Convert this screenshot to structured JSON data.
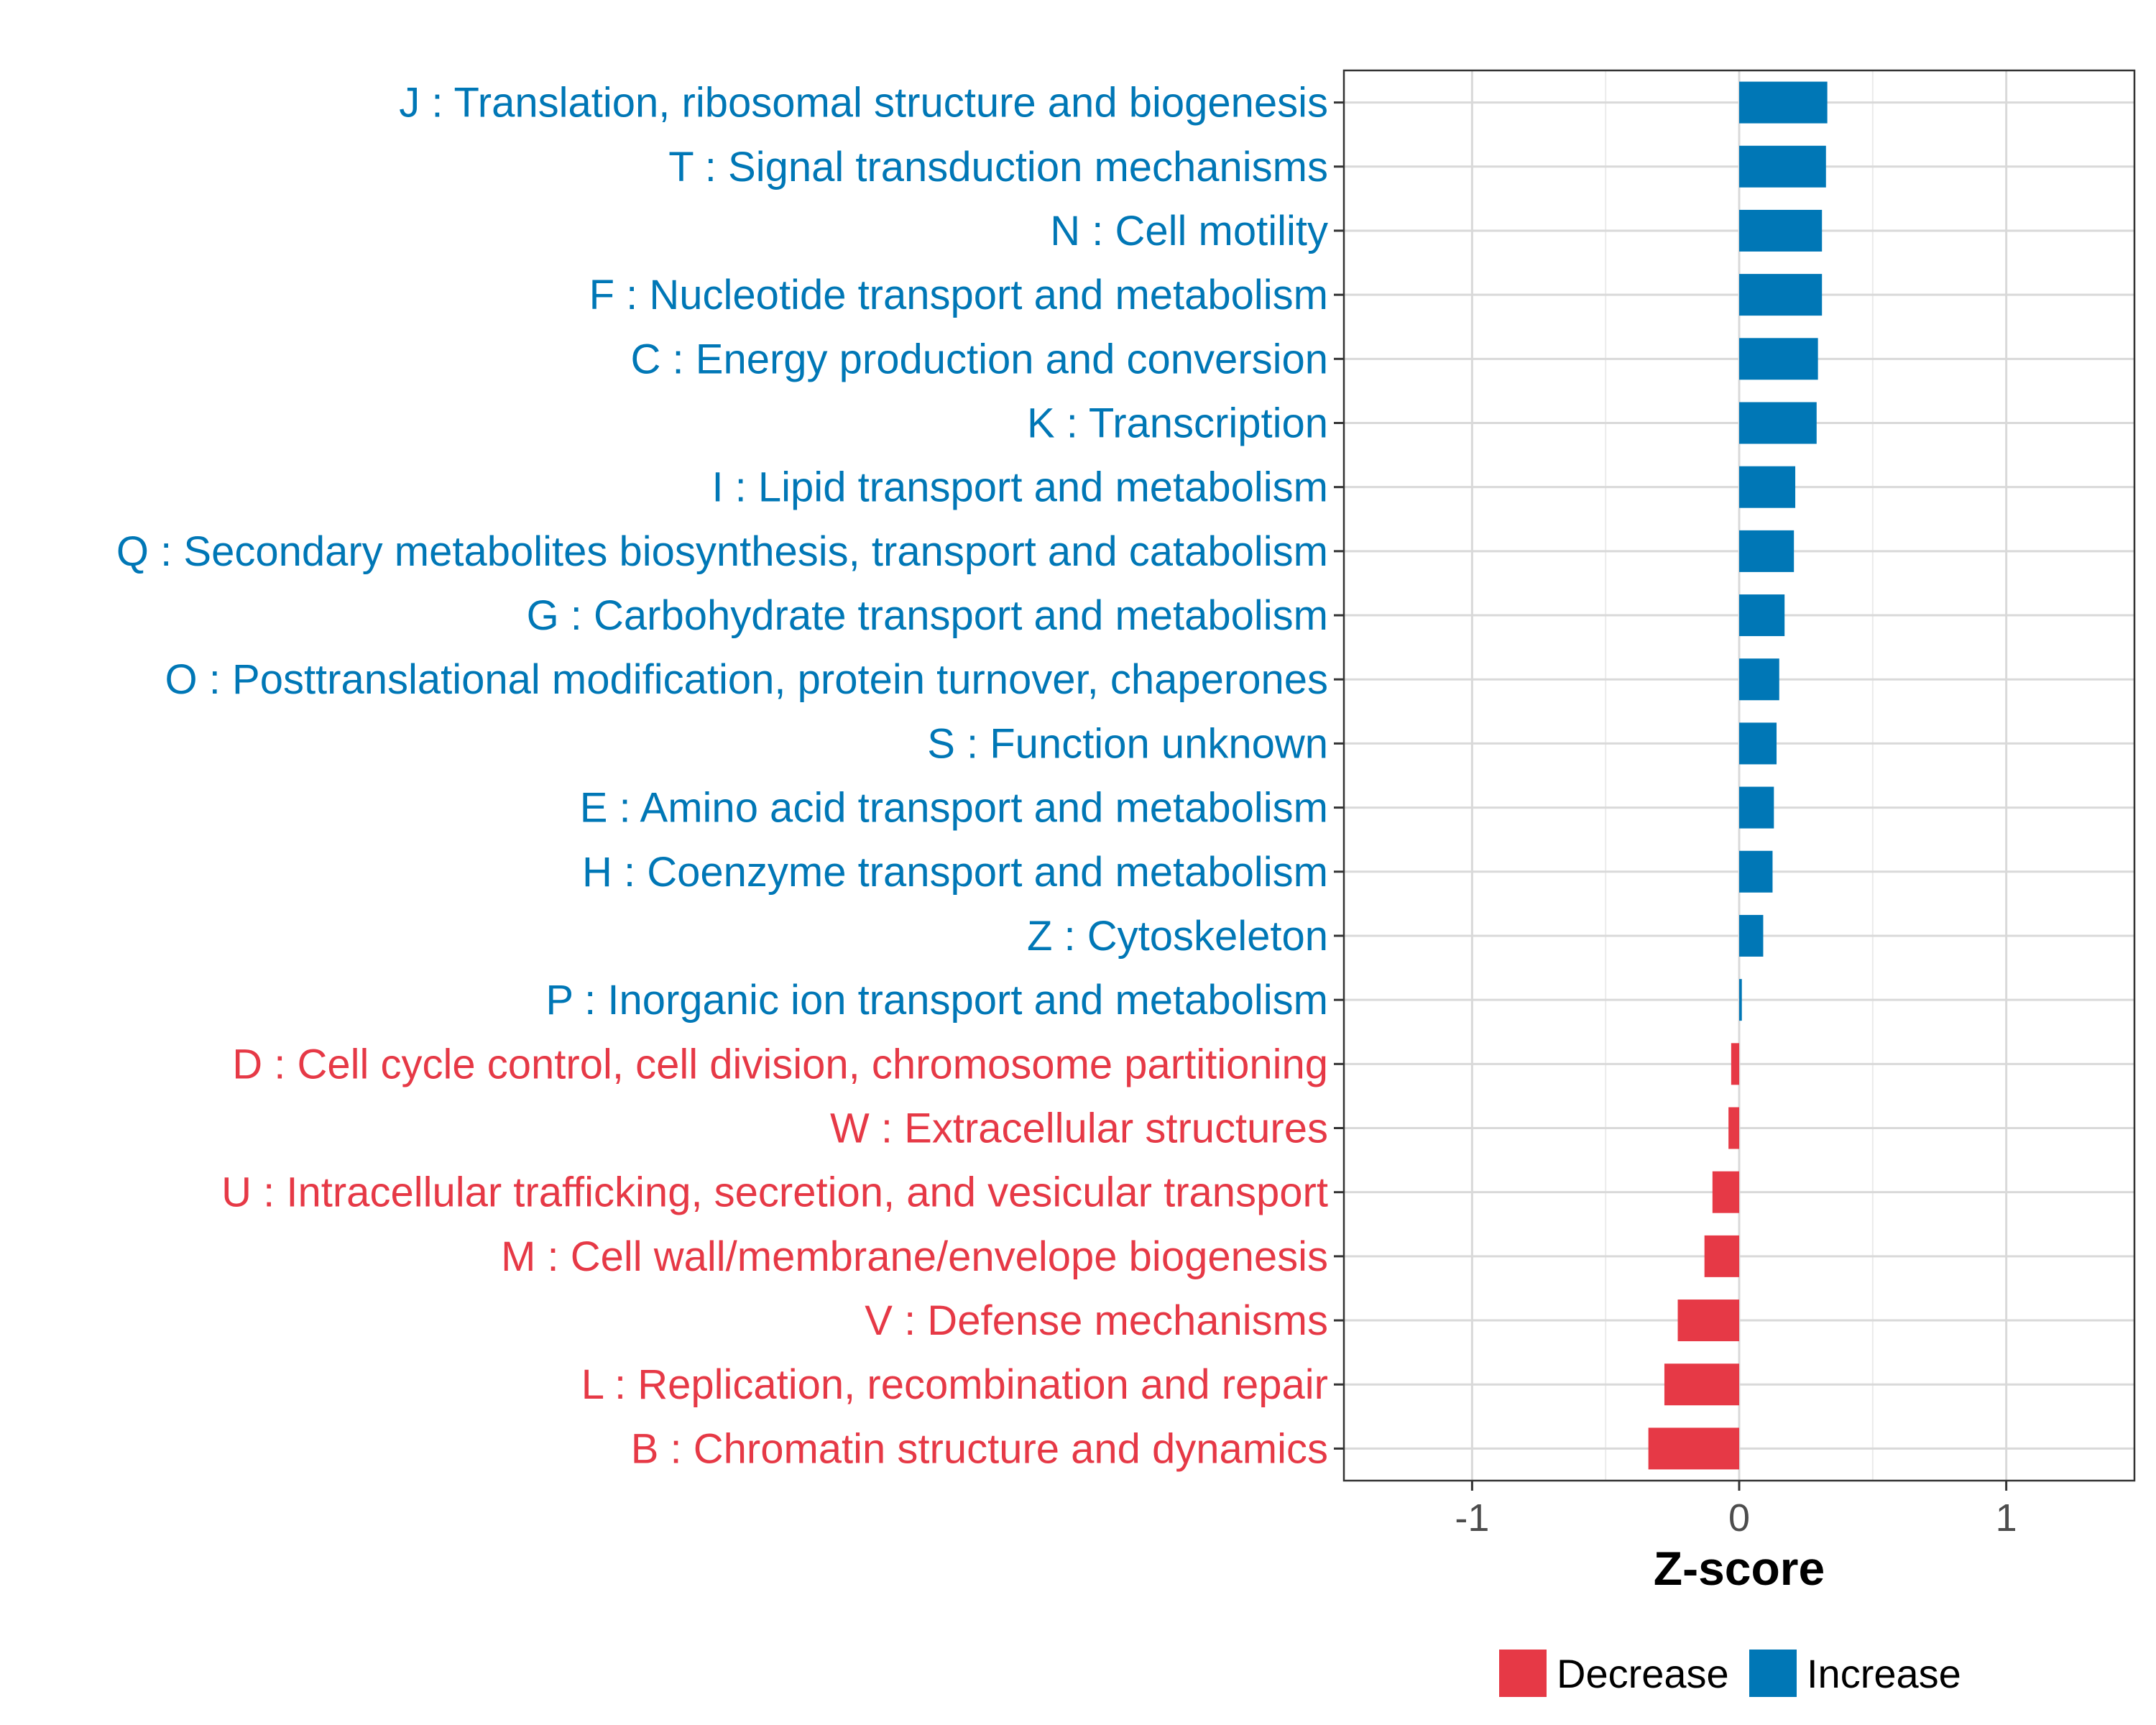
{
  "chart_data": {
    "type": "bar",
    "orientation": "horizontal",
    "title": "",
    "xlabel": "Z-score",
    "ylabel": "",
    "xlim": [
      -1.48,
      1.48
    ],
    "xticks": [
      -1,
      0,
      1
    ],
    "xtick_labels": [
      "-1",
      "0",
      "1"
    ],
    "grid": true,
    "legend_position": "bottom",
    "colors": {
      "Decrease": "#e63946",
      "Increase": "#0077b6"
    },
    "legend": [
      {
        "label": "Decrease",
        "group": "Decrease"
      },
      {
        "label": "Increase",
        "group": "Increase"
      }
    ],
    "categories": [
      "J : Translation, ribosomal structure and biogenesis",
      "T : Signal transduction mechanisms",
      "N : Cell motility",
      "F : Nucleotide transport and metabolism",
      "C : Energy production and conversion",
      "K : Transcription",
      "I : Lipid transport and metabolism",
      "Q : Secondary metabolites biosynthesis, transport and catabolism",
      "G : Carbohydrate transport and metabolism",
      "O : Posttranslational modification, protein turnover, chaperones",
      "S : Function unknown",
      "E : Amino acid transport and metabolism",
      "H : Coenzyme transport and metabolism",
      "Z : Cytoskeleton",
      "P : Inorganic ion transport and metabolism",
      "D : Cell cycle control, cell division, chromosome partitioning",
      "W : Extracellular structures",
      "U : Intracellular trafficking, secretion, and vesicular transport",
      "M : Cell wall/membrane/envelope biogenesis",
      "V : Defense mechanisms",
      "L : Replication, recombination and repair",
      "B : Chromatin structure and dynamics"
    ],
    "values": [
      0.33,
      0.325,
      0.31,
      0.31,
      0.295,
      0.29,
      0.21,
      0.205,
      0.17,
      0.15,
      0.14,
      0.13,
      0.125,
      0.09,
      0.01,
      -0.03,
      -0.04,
      -0.1,
      -0.13,
      -0.23,
      -0.28,
      -0.34
    ],
    "groups": [
      "Increase",
      "Increase",
      "Increase",
      "Increase",
      "Increase",
      "Increase",
      "Increase",
      "Increase",
      "Increase",
      "Increase",
      "Increase",
      "Increase",
      "Increase",
      "Increase",
      "Increase",
      "Decrease",
      "Decrease",
      "Decrease",
      "Decrease",
      "Decrease",
      "Decrease",
      "Decrease"
    ]
  }
}
